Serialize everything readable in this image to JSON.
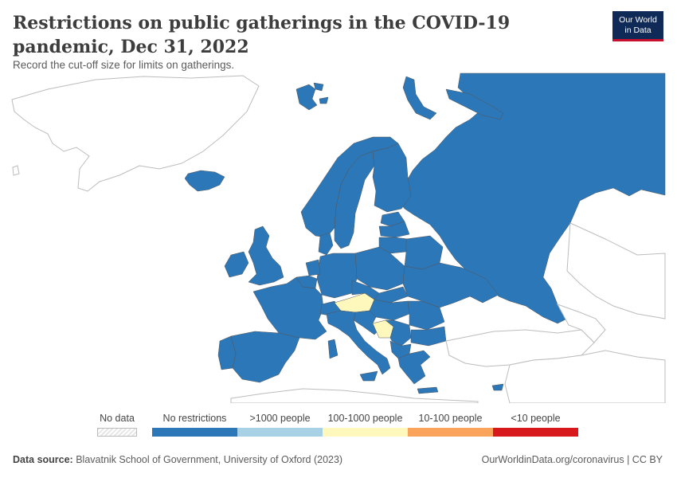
{
  "header": {
    "title": "Restrictions on public gatherings in the COVID-19 pandemic, Dec 31, 2022",
    "subtitle": "Record the cut-off size for limits on gatherings."
  },
  "logo": {
    "line1": "Our World",
    "line2": "in Data"
  },
  "colors": {
    "no_data": "#e6e6e6",
    "no_restrictions": "#2c77b8",
    "over_1000": "#a8d1e6",
    "range_100_1000": "#fff8bd",
    "range_10_100": "#f9a35b",
    "under_10": "#d7191c",
    "land_outline": "#bcbcbc",
    "border": "#555555"
  },
  "legend": {
    "items": [
      {
        "label": "No data",
        "color_key": "no_data"
      },
      {
        "label": "No restrictions",
        "color_key": "no_restrictions"
      },
      {
        "label": ">1000 people",
        "color_key": "over_1000"
      },
      {
        "label": "100-1000 people",
        "color_key": "range_100_1000"
      },
      {
        "label": "10-100 people",
        "color_key": "range_10_100"
      },
      {
        "label": "<10 people",
        "color_key": "under_10"
      }
    ]
  },
  "footer": {
    "source_label": "Data source:",
    "source_text": "Blavatnik School of Government, University of Oxford (2023)",
    "right": "OurWorldinData.org/coronavirus | CC BY"
  },
  "map_data": {
    "region": "Europe",
    "date": "Dec 31, 2022",
    "countries": [
      {
        "name": "Austria",
        "category": "100-1000 people"
      },
      {
        "name": "Bosnia and Herzegovina",
        "category": "100-1000 people"
      },
      {
        "name": "Russia",
        "category": "No restrictions"
      },
      {
        "name": "Spain",
        "category": "No restrictions"
      },
      {
        "name": "France",
        "category": "No restrictions"
      },
      {
        "name": "Germany",
        "category": "No restrictions"
      },
      {
        "name": "Italy",
        "category": "No restrictions"
      },
      {
        "name": "United Kingdom",
        "category": "No restrictions"
      },
      {
        "name": "Ireland",
        "category": "No restrictions"
      },
      {
        "name": "Norway",
        "category": "No restrictions"
      },
      {
        "name": "Sweden",
        "category": "No restrictions"
      },
      {
        "name": "Finland",
        "category": "No restrictions"
      },
      {
        "name": "Poland",
        "category": "No restrictions"
      },
      {
        "name": "Ukraine",
        "category": "No restrictions"
      },
      {
        "name": "Iceland",
        "category": "No restrictions"
      },
      {
        "name": "Greece",
        "category": "No restrictions"
      },
      {
        "name": "Turkey",
        "category": "No data"
      }
    ]
  }
}
